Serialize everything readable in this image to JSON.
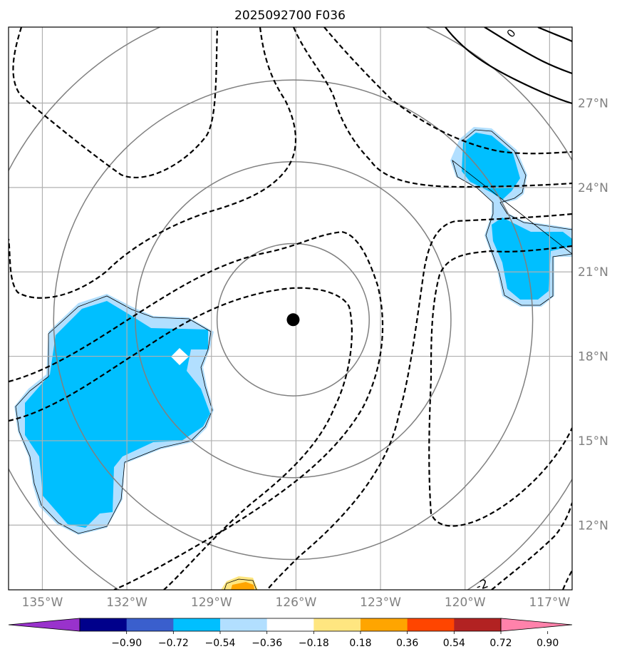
{
  "chart_data": {
    "type": "contour_map",
    "title": "2025092700 F036",
    "x_axis": {
      "ticks": [
        -135,
        -132,
        -129,
        -126,
        -123,
        -120,
        -117
      ],
      "tick_labels": [
        "135°W",
        "132°W",
        "129°W",
        "126°W",
        "123°W",
        "120°W",
        "117°W"
      ],
      "range": [
        -136.2,
        -116.2
      ]
    },
    "y_axis": {
      "ticks": [
        12,
        15,
        18,
        21,
        24,
        27
      ],
      "tick_labels": [
        "12°N",
        "15°N",
        "18°N",
        "21°N",
        "24°N",
        "27°N"
      ],
      "range": [
        9.7,
        29.7
      ]
    },
    "grid": true,
    "center_marker": {
      "lon": -126.1,
      "lat": 19.3
    },
    "range_rings_deg": [
      2.7,
      5.6,
      8.5,
      11.4
    ],
    "contour_labels": [
      "0",
      "-2"
    ],
    "colorbar": {
      "ticks": [
        "−0.90",
        "−0.72",
        "−0.54",
        "−0.36",
        "−0.18",
        "0.18",
        "0.36",
        "0.54",
        "0.72",
        "0.90"
      ],
      "colors": [
        "#9932cc",
        "#00008b",
        "#3a5fcd",
        "#00bfff",
        "#b2dfff",
        "#ffffff",
        "#ffe680",
        "#ffa500",
        "#ff4500",
        "#b22222",
        "#ff82ab"
      ],
      "extend": "both"
    }
  }
}
